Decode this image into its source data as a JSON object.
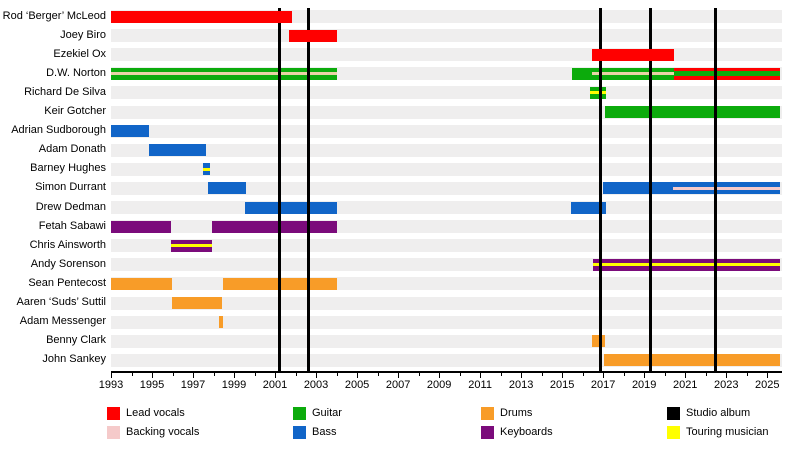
{
  "chart_data": {
    "type": "bar",
    "subtype": "gantt-member-timeline",
    "title": "",
    "xlabel": "",
    "ylabel": "",
    "grid": false,
    "legend_position": "bottom",
    "x_axis": {
      "min": 1993,
      "max": 2025.72,
      "minor_tick_step": 1,
      "label_step": 2,
      "tick_labels": [
        "1993",
        "1995",
        "1997",
        "1999",
        "2001",
        "2003",
        "2005",
        "2007",
        "2009",
        "2011",
        "2013",
        "2015",
        "2017",
        "2019",
        "2021",
        "2023",
        "2025"
      ]
    },
    "colors": {
      "lead_vocals": "#ff0000",
      "backing_vocals": "#f5caca",
      "backing_vocals_cream": "#e9d3a6",
      "guitar": "#0cab0c",
      "bass": "#1165c8",
      "drums": "#f89c28",
      "keyboards": "#7b0b7b",
      "studio_album": "#000000",
      "touring_musician": "#ffff00",
      "row_stripe": "#efeeee"
    },
    "album_lines": [
      2001.24,
      2002.61,
      2016.85,
      2019.29,
      2022.46
    ],
    "members": [
      {
        "name": "Rod ‘Berger’ McLeod",
        "bars": [
          {
            "start": 1993.0,
            "end": 2001.83,
            "role": "lead_vocals",
            "front": true
          }
        ]
      },
      {
        "name": "Joey Biro",
        "bars": [
          {
            "start": 2001.7,
            "end": 2004.0,
            "role": "lead_vocals",
            "front": true
          }
        ]
      },
      {
        "name": "Ezekiel Ox",
        "bars": [
          {
            "start": 2016.46,
            "end": 2020.45,
            "role": "lead_vocals",
            "front": true
          }
        ]
      },
      {
        "name": "D.W. Norton",
        "bars": [
          {
            "start": 1993.0,
            "end": 2004.02,
            "role": "guitar",
            "stripe": "backing_vocals_cream"
          },
          {
            "start": 2015.49,
            "end": 2016.46,
            "role": "guitar"
          },
          {
            "start": 2016.46,
            "end": 2020.45,
            "role": "guitar",
            "stripe": "backing_vocals_cream"
          },
          {
            "start": 2020.45,
            "end": 2025.63,
            "role": "lead_vocals",
            "stripe": "guitar",
            "stripe_thick": true
          }
        ]
      },
      {
        "name": "Richard De Silva",
        "bars": [
          {
            "start": 2016.37,
            "end": 2017.15,
            "role": "guitar",
            "stripe": "touring_musician"
          }
        ]
      },
      {
        "name": "Keir Gotcher",
        "bars": [
          {
            "start": 2017.1,
            "end": 2025.63,
            "role": "guitar"
          }
        ]
      },
      {
        "name": "Adrian Sudborough",
        "bars": [
          {
            "start": 1993.0,
            "end": 1994.85,
            "role": "bass"
          }
        ]
      },
      {
        "name": "Adam Donath",
        "bars": [
          {
            "start": 1994.85,
            "end": 1997.63,
            "role": "bass"
          }
        ]
      },
      {
        "name": "Barney Hughes",
        "bars": [
          {
            "start": 1997.49,
            "end": 1997.83,
            "role": "bass",
            "stripe": "touring_musician"
          }
        ]
      },
      {
        "name": "Simon Durrant",
        "bars": [
          {
            "start": 1997.73,
            "end": 1999.59,
            "role": "bass"
          },
          {
            "start": 2017.0,
            "end": 2025.63,
            "role": "bass",
            "stripe": "backing_vocals",
            "stripe_from": 2020.4
          }
        ]
      },
      {
        "name": "Drew Dedman",
        "bars": [
          {
            "start": 1999.54,
            "end": 2004.0,
            "role": "bass"
          },
          {
            "start": 2015.44,
            "end": 2017.15,
            "role": "bass"
          }
        ]
      },
      {
        "name": "Fetah Sabawi",
        "bars": [
          {
            "start": 1993.0,
            "end": 1995.93,
            "role": "keyboards"
          },
          {
            "start": 1997.93,
            "end": 2004.02,
            "role": "keyboards"
          }
        ]
      },
      {
        "name": "Chris Ainsworth",
        "bars": [
          {
            "start": 1995.93,
            "end": 1997.93,
            "role": "keyboards",
            "stripe": "touring_musician"
          }
        ]
      },
      {
        "name": "Andy Sorenson",
        "bars": [
          {
            "start": 2016.51,
            "end": 2025.63,
            "role": "keyboards",
            "stripe": "touring_musician"
          }
        ]
      },
      {
        "name": "Sean Pentecost",
        "bars": [
          {
            "start": 1993.0,
            "end": 1995.98,
            "role": "drums"
          },
          {
            "start": 1998.46,
            "end": 2004.02,
            "role": "drums"
          }
        ]
      },
      {
        "name": "Aaren ‘Suds’ Suttil",
        "bars": [
          {
            "start": 1995.98,
            "end": 1998.41,
            "role": "drums"
          }
        ]
      },
      {
        "name": "Adam Messenger",
        "bars": [
          {
            "start": 1998.27,
            "end": 1998.46,
            "role": "drums"
          }
        ]
      },
      {
        "name": "Benny Clark",
        "bars": [
          {
            "start": 2016.46,
            "end": 2017.1,
            "role": "drums"
          }
        ]
      },
      {
        "name": "John Sankey",
        "bars": [
          {
            "start": 2017.05,
            "end": 2025.63,
            "role": "drums"
          }
        ]
      }
    ],
    "legend": {
      "columns": [
        [
          {
            "label": "Lead vocals",
            "color_key": "lead_vocals"
          },
          {
            "label": "Backing vocals",
            "color_key": "backing_vocals"
          }
        ],
        [
          {
            "label": "Guitar",
            "color_key": "guitar"
          },
          {
            "label": "Bass",
            "color_key": "bass"
          }
        ],
        [
          {
            "label": "Drums",
            "color_key": "drums"
          },
          {
            "label": "Keyboards",
            "color_key": "keyboards"
          }
        ],
        [
          {
            "label": "Studio album",
            "color_key": "studio_album"
          },
          {
            "label": "Touring musician",
            "color_key": "touring_musician"
          }
        ]
      ]
    }
  }
}
